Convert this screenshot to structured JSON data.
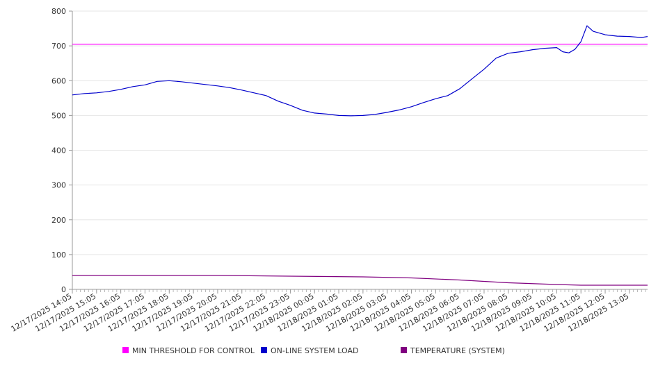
{
  "chart_data": {
    "type": "line",
    "title": "",
    "xlabel": "",
    "ylabel": "",
    "ylim": [
      0,
      800
    ],
    "yticks": [
      0,
      100,
      200,
      300,
      400,
      500,
      600,
      700,
      800
    ],
    "grid": "horizontal",
    "legend_position": "bottom",
    "xlim": [
      "12/17/2025 14:05",
      "12/18/2025 13:50"
    ],
    "xtick_labels": [
      "12/17/2025 14:05",
      "12/17/2025 15:05",
      "12/17/2025 16:05",
      "12/17/2025 17:05",
      "12/17/2025 18:05",
      "12/17/2025 19:05",
      "12/17/2025 20:05",
      "12/17/2025 21:05",
      "12/17/2025 22:05",
      "12/17/2025 23:05",
      "12/18/2025 00:05",
      "12/18/2025 01:05",
      "12/18/2025 02:05",
      "12/18/2025 03:05",
      "12/18/2025 04:05",
      "12/18/2025 05:05",
      "12/18/2025 06:05",
      "12/18/2025 07:05",
      "12/18/2025 08:05",
      "12/18/2025 09:05",
      "12/18/2025 10:05",
      "12/18/2025 11:05",
      "12/18/2025 12:05",
      "12/18/2025 13:05"
    ],
    "series": [
      {
        "name": "MIN THRESHOLD FOR CONTROL",
        "color": "#ff00ff",
        "points": [
          [
            "12/17/2025 14:05",
            705
          ],
          [
            "12/18/2025 13:50",
            705
          ]
        ]
      },
      {
        "name": "ON-LINE SYSTEM LOAD",
        "color": "#0000cc",
        "points": [
          [
            "12/17/2025 14:05",
            559
          ],
          [
            "12/17/2025 14:35",
            563
          ],
          [
            "12/17/2025 15:05",
            565
          ],
          [
            "12/17/2025 15:35",
            569
          ],
          [
            "12/17/2025 16:05",
            575
          ],
          [
            "12/17/2025 16:35",
            583
          ],
          [
            "12/17/2025 17:05",
            588
          ],
          [
            "12/17/2025 17:35",
            598
          ],
          [
            "12/17/2025 18:05",
            600
          ],
          [
            "12/17/2025 18:35",
            597
          ],
          [
            "12/17/2025 19:05",
            593
          ],
          [
            "12/17/2025 19:35",
            589
          ],
          [
            "12/17/2025 20:05",
            585
          ],
          [
            "12/17/2025 20:35",
            580
          ],
          [
            "12/17/2025 21:05",
            573
          ],
          [
            "12/17/2025 21:35",
            565
          ],
          [
            "12/17/2025 22:05",
            557
          ],
          [
            "12/17/2025 22:35",
            541
          ],
          [
            "12/17/2025 23:05",
            529
          ],
          [
            "12/17/2025 23:35",
            515
          ],
          [
            "12/18/2025 00:05",
            507
          ],
          [
            "12/18/2025 00:35",
            504
          ],
          [
            "12/18/2025 01:05",
            500
          ],
          [
            "12/18/2025 01:35",
            499
          ],
          [
            "12/18/2025 02:05",
            500
          ],
          [
            "12/18/2025 02:35",
            503
          ],
          [
            "12/18/2025 03:05",
            509
          ],
          [
            "12/18/2025 03:35",
            516
          ],
          [
            "12/18/2025 04:05",
            525
          ],
          [
            "12/18/2025 04:35",
            537
          ],
          [
            "12/18/2025 05:05",
            548
          ],
          [
            "12/18/2025 05:35",
            557
          ],
          [
            "12/18/2025 06:05",
            577
          ],
          [
            "12/18/2025 06:35",
            605
          ],
          [
            "12/18/2025 07:05",
            633
          ],
          [
            "12/18/2025 07:35",
            665
          ],
          [
            "12/18/2025 08:05",
            679
          ],
          [
            "12/18/2025 08:35",
            683
          ],
          [
            "12/18/2025 09:05",
            689
          ],
          [
            "12/18/2025 09:35",
            693
          ],
          [
            "12/18/2025 10:05",
            695
          ],
          [
            "12/18/2025 10:20",
            683
          ],
          [
            "12/18/2025 10:35",
            680
          ],
          [
            "12/18/2025 10:50",
            690
          ],
          [
            "12/18/2025 11:05",
            712
          ],
          [
            "12/18/2025 11:20",
            758
          ],
          [
            "12/18/2025 11:35",
            742
          ],
          [
            "12/18/2025 12:05",
            732
          ],
          [
            "12/18/2025 12:35",
            728
          ],
          [
            "12/18/2025 13:05",
            727
          ],
          [
            "12/18/2025 13:35",
            724
          ],
          [
            "12/18/2025 13:50",
            727
          ]
        ]
      },
      {
        "name": "TEMPERATURE (SYSTEM)",
        "color": "#800080",
        "points": [
          [
            "12/17/2025 14:05",
            40
          ],
          [
            "12/17/2025 17:05",
            40
          ],
          [
            "12/17/2025 20:05",
            40
          ],
          [
            "12/17/2025 23:05",
            38
          ],
          [
            "12/18/2025 02:05",
            36
          ],
          [
            "12/18/2025 04:05",
            33
          ],
          [
            "12/18/2025 06:05",
            27
          ],
          [
            "12/18/2025 08:05",
            19
          ],
          [
            "12/18/2025 10:05",
            14
          ],
          [
            "12/18/2025 11:05",
            12
          ],
          [
            "12/18/2025 13:50",
            12
          ]
        ]
      }
    ]
  }
}
